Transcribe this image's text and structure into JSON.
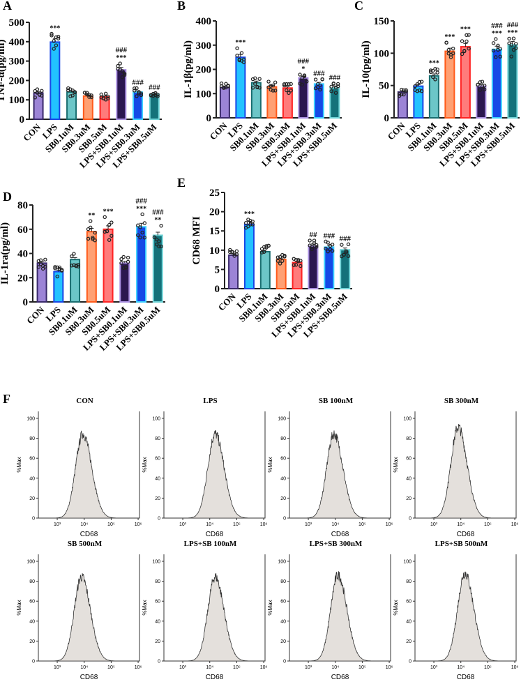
{
  "categories": [
    "CON",
    "LPS",
    "SB0.1uM",
    "SB0.3uM",
    "SB0.5uM",
    "LPS+SB0.1uM",
    "LPS+SB0.3uM",
    "LPS+SB0.5uM"
  ],
  "bar_colors": {
    "fill": [
      "#9c84d6",
      "#22c2ff",
      "#6cc6c8",
      "#ffa073",
      "#ff7b7b",
      "#2b1750",
      "#1549e6",
      "#14727a"
    ],
    "border": [
      "#3a2a6b",
      "#1747e6",
      "#1a6e70",
      "#ff5a1a",
      "#ff2222",
      "#a98fe0",
      "#3ccfff",
      "#6fd3d6"
    ]
  },
  "chart_data": [
    {
      "panel": "A",
      "type": "bar",
      "ylabel": "TNF-α(pg/ml)",
      "ylim": [
        0,
        500
      ],
      "yticks": [
        0,
        100,
        200,
        300,
        400,
        500
      ],
      "values": [
        135,
        398,
        140,
        120,
        115,
        255,
        140,
        130
      ],
      "annotations": [
        "",
        "***",
        "",
        "",
        "",
        "###\n***",
        "###",
        "###"
      ]
    },
    {
      "panel": "B",
      "type": "bar",
      "ylabel": "IL-1β(pg/ml)",
      "ylim": [
        0,
        400
      ],
      "yticks": [
        0,
        100,
        200,
        300,
        400
      ],
      "values": [
        125,
        250,
        145,
        128,
        123,
        165,
        140,
        123
      ],
      "annotations": [
        "",
        "***",
        "",
        "",
        "",
        "###\n*",
        "###",
        "###"
      ]
    },
    {
      "panel": "C",
      "type": "bar",
      "ylabel": "IL-10(pg/ml)",
      "ylim": [
        0,
        150
      ],
      "yticks": [
        0,
        50,
        100,
        150
      ],
      "values": [
        40,
        49,
        65,
        103,
        110,
        49,
        106,
        113
      ],
      "annotations": [
        "",
        "",
        "***",
        "***",
        "***",
        "",
        "###\n***",
        "###\n***"
      ]
    },
    {
      "panel": "D",
      "type": "bar",
      "ylabel": "IL-1ra(pg/ml)",
      "ylim": [
        0,
        80
      ],
      "yticks": [
        0,
        20,
        40,
        60,
        80
      ],
      "values": [
        32,
        25,
        35,
        58,
        60,
        32,
        62,
        55
      ],
      "annotations": [
        "",
        "",
        "",
        "**",
        "***",
        "",
        "###\n***",
        "###\n**"
      ]
    },
    {
      "panel": "E",
      "type": "bar",
      "ylabel": "CD68 MFI",
      "ylim": [
        0,
        25
      ],
      "yticks": [
        0,
        5,
        10,
        15,
        20,
        25
      ],
      "values": [
        8.7,
        16.7,
        9.6,
        7.6,
        6.8,
        11.1,
        10.8,
        10.1
      ],
      "annotations": [
        "",
        "***",
        "",
        "",
        "",
        "##",
        "###",
        "###"
      ]
    },
    {
      "panel": "F",
      "type": "area",
      "xlabel": "CD68",
      "ylabel": "%Max",
      "ylim": [
        0,
        100
      ],
      "yticks": [
        0,
        20,
        40,
        60,
        80,
        100
      ],
      "xticks": [
        "10³",
        "10⁴",
        "10⁵",
        "10⁶"
      ],
      "histograms": [
        {
          "title": "CON",
          "peak_log10": 3.95,
          "peak": 88
        },
        {
          "title": "LPS",
          "peak_log10": 4.2,
          "peak": 88
        },
        {
          "title": "SB 100nM",
          "peak_log10": 3.95,
          "peak": 88
        },
        {
          "title": "SB 300nM",
          "peak_log10": 3.9,
          "peak": 95
        },
        {
          "title": "SB 500nM",
          "peak_log10": 3.9,
          "peak": 88
        },
        {
          "title": "LPS+SB 100nM",
          "peak_log10": 4.2,
          "peak": 88
        },
        {
          "title": "LPS+SB 300nM",
          "peak_log10": 4.1,
          "peak": 90
        },
        {
          "title": "LPS+SB 500nM",
          "peak_log10": 4.15,
          "peak": 92
        }
      ]
    }
  ]
}
